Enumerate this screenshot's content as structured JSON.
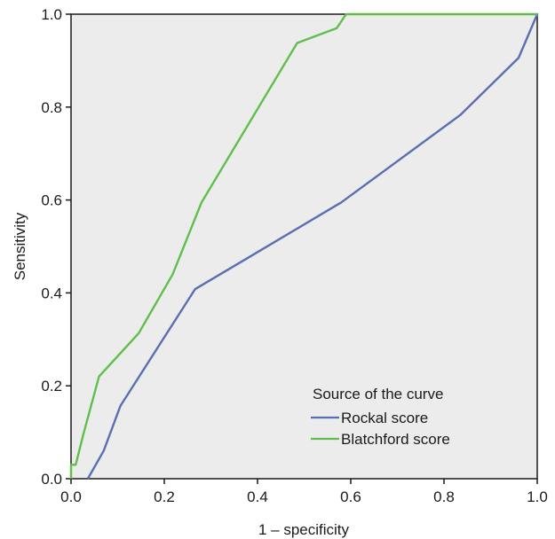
{
  "chart_data": {
    "type": "line",
    "xlabel": "1 – specificity",
    "ylabel": "Sensitivity",
    "xlim": [
      0.0,
      1.0
    ],
    "ylim": [
      0.0,
      1.0
    ],
    "xticks": [
      "0.0",
      "0.2",
      "0.4",
      "0.6",
      "0.8",
      "1.0"
    ],
    "yticks": [
      "0.0",
      "0.2",
      "0.4",
      "0.6",
      "0.8",
      "1.0"
    ],
    "grid": false,
    "plot_background": "#ececec",
    "legend": {
      "title": "Source of the curve",
      "placement": "bottom-right"
    },
    "series": [
      {
        "name": "Rockal score",
        "color": "#5a6fb0",
        "points": [
          [
            0.036,
            0.0
          ],
          [
            0.07,
            0.06
          ],
          [
            0.106,
            0.157
          ],
          [
            0.266,
            0.408
          ],
          [
            0.58,
            0.595
          ],
          [
            0.835,
            0.783
          ],
          [
            0.96,
            0.906
          ],
          [
            1.0,
            1.0
          ]
        ]
      },
      {
        "name": "Blatchford score",
        "color": "#5fbf4a",
        "points": [
          [
            0.0,
            0.0
          ],
          [
            0.0,
            0.03
          ],
          [
            0.01,
            0.03
          ],
          [
            0.026,
            0.094
          ],
          [
            0.06,
            0.22
          ],
          [
            0.145,
            0.313
          ],
          [
            0.218,
            0.44
          ],
          [
            0.28,
            0.595
          ],
          [
            0.485,
            0.938
          ],
          [
            0.57,
            0.97
          ],
          [
            0.59,
            1.0
          ],
          [
            1.0,
            1.0
          ]
        ]
      }
    ]
  }
}
